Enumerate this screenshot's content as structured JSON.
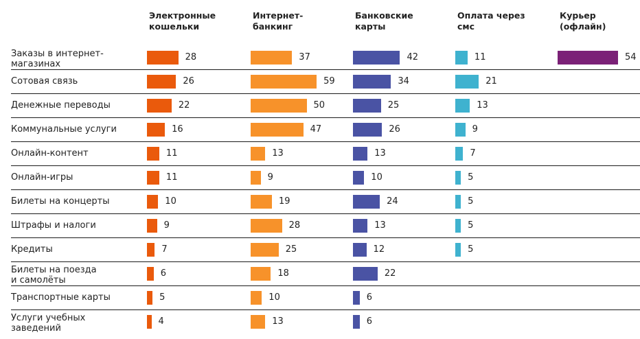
{
  "chart_data": {
    "type": "bar",
    "orientation": "horizontal",
    "layout": "small-multiples",
    "title": "",
    "xlabel": "",
    "ylabel": "",
    "grid": false,
    "legend": "none",
    "categories": [
      "Заказы в интернет-\nмагазинах",
      "Сотовая связь",
      "Денежные переводы",
      "Коммунальные услуги",
      "Онлайн-контент",
      "Онлайн-игры",
      "Билеты на концерты",
      "Штрафы и налоги",
      "Кредиты",
      "Билеты на поезда\nи самолёты",
      "Транспортные  карты",
      "Услуги учебных\nзаведений"
    ],
    "series": [
      {
        "name": "Электронные\nкошельки",
        "color": "#ea5a0c",
        "values": [
          28,
          26,
          22,
          16,
          11,
          11,
          10,
          9,
          7,
          6,
          5,
          4
        ]
      },
      {
        "name": "Интернет-\nбанкинг",
        "color": "#f7922a",
        "values": [
          37,
          59,
          50,
          47,
          13,
          9,
          19,
          28,
          25,
          18,
          10,
          13
        ]
      },
      {
        "name": "Банковские\nкарты",
        "color": "#4a53a4",
        "values": [
          42,
          34,
          25,
          26,
          13,
          10,
          24,
          13,
          12,
          22,
          6,
          6
        ]
      },
      {
        "name": "Оплата через\nсмс",
        "color": "#3fb2cf",
        "values": [
          11,
          21,
          13,
          9,
          7,
          5,
          5,
          5,
          5,
          null,
          null,
          null
        ]
      },
      {
        "name": "Курьер\n(офлайн)",
        "color": "#7b2177",
        "values": [
          54,
          null,
          null,
          null,
          null,
          null,
          null,
          null,
          null,
          null,
          null,
          null
        ]
      }
    ]
  }
}
